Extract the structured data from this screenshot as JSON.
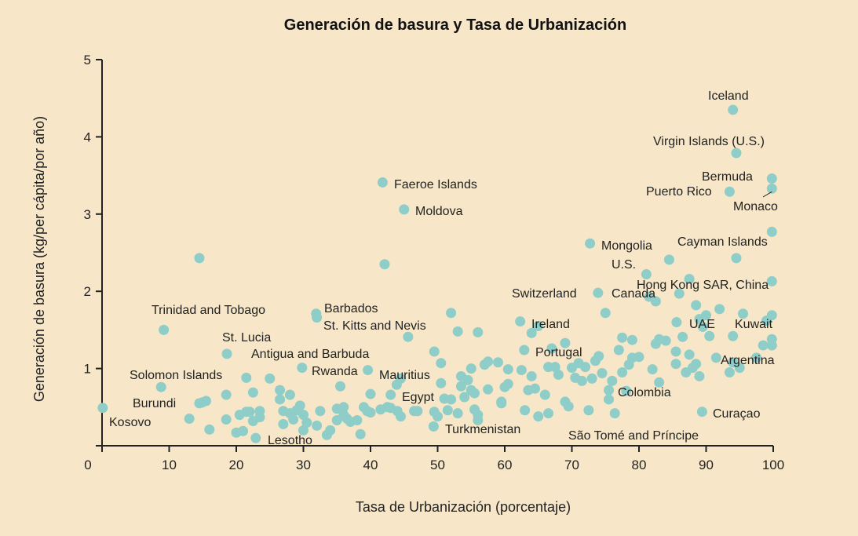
{
  "colors": {
    "background": "#f7e7c8",
    "point": "#8ecdc8",
    "axis": "#222222"
  },
  "chart_data": {
    "type": "scatter",
    "title": "Generación de basura y Tasa de Urbanización",
    "xlabel": "Tasa de Urbanización (porcentaje)",
    "ylabel": "Generación de basura (kg/per cápita/por año)",
    "xlim": [
      0,
      100
    ],
    "ylim": [
      0,
      5
    ],
    "xticks": [
      0,
      10,
      20,
      30,
      40,
      50,
      60,
      70,
      80,
      90,
      100
    ],
    "yticks": [
      1,
      2,
      3,
      4,
      5
    ],
    "grid": false,
    "labeled_points": [
      {
        "name": "Iceland",
        "x": 94.0,
        "y": 4.35
      },
      {
        "name": "Virgin Islands (U.S.)",
        "x": 94.5,
        "y": 3.79
      },
      {
        "name": "Bermuda",
        "x": 99.8,
        "y": 3.46
      },
      {
        "name": "Puerto Rico",
        "x": 93.5,
        "y": 3.29
      },
      {
        "name": "Monaco",
        "x": 99.8,
        "y": 3.33
      },
      {
        "name": "Cayman Islands",
        "x": 99.8,
        "y": 2.77
      },
      {
        "name": "Faeroe Islands",
        "x": 41.8,
        "y": 3.41
      },
      {
        "name": "Moldova",
        "x": 45.0,
        "y": 3.06
      },
      {
        "name": "Mongolia",
        "x": 72.7,
        "y": 2.62
      },
      {
        "name": "U.S.",
        "x": 81.1,
        "y": 2.22
      },
      {
        "name": "Hong Kong SAR, China",
        "x": 99.8,
        "y": 2.13
      },
      {
        "name": "Switzerland",
        "x": 73.9,
        "y": 1.98
      },
      {
        "name": "Canada",
        "x": 81.5,
        "y": 1.93
      },
      {
        "name": "Ireland",
        "x": 62.3,
        "y": 1.61
      },
      {
        "name": "UAE",
        "x": 85.6,
        "y": 1.6
      },
      {
        "name": "Kuwait",
        "x": 99.8,
        "y": 1.69
      },
      {
        "name": "Portugal",
        "x": 62.9,
        "y": 1.24
      },
      {
        "name": "Argentina",
        "x": 91.5,
        "y": 1.14
      },
      {
        "name": "Colombia",
        "x": 78.1,
        "y": 0.71
      },
      {
        "name": "Curaçao",
        "x": 89.4,
        "y": 0.44
      },
      {
        "name": "São Tomé and Príncipe",
        "x": 76.4,
        "y": 0.42
      },
      {
        "name": "Turkmenistan",
        "x": 49.4,
        "y": 0.25
      },
      {
        "name": "Egypt",
        "x": 43.9,
        "y": 0.79
      },
      {
        "name": "Mauritius",
        "x": 39.6,
        "y": 0.98
      },
      {
        "name": "Rwanda",
        "x": 29.8,
        "y": 1.01
      },
      {
        "name": "Antigua and Barbuda",
        "x": 21.5,
        "y": 0.88
      },
      {
        "name": "St. Lucia",
        "x": 18.6,
        "y": 1.19
      },
      {
        "name": "Barbados",
        "x": 31.9,
        "y": 1.71
      },
      {
        "name": "St. Kitts and Nevis",
        "x": 32.0,
        "y": 1.66
      },
      {
        "name": "Trinidad and Tobago",
        "x": 9.2,
        "y": 1.5
      },
      {
        "name": "Solomon Islands",
        "x": 8.8,
        "y": 0.76
      },
      {
        "name": "Burundi",
        "x": 14.9,
        "y": 0.56
      },
      {
        "name": "Kosovo",
        "x": 0.1,
        "y": 0.49
      },
      {
        "name": "Lesotho",
        "x": 22.9,
        "y": 0.1
      }
    ],
    "points": [
      [
        14.5,
        2.43
      ],
      [
        42.1,
        2.35
      ],
      [
        45.6,
        1.41
      ],
      [
        13,
        0.35
      ],
      [
        15.5,
        0.58
      ],
      [
        14.5,
        0.55
      ],
      [
        16,
        0.21
      ],
      [
        18.5,
        0.66
      ],
      [
        18.5,
        0.34
      ],
      [
        20,
        0.17
      ],
      [
        20.5,
        0.4
      ],
      [
        21,
        0.19
      ],
      [
        21.5,
        0.44
      ],
      [
        22,
        0.44
      ],
      [
        22.5,
        0.32
      ],
      [
        22.5,
        0.69
      ],
      [
        23.5,
        0.45
      ],
      [
        23.5,
        0.37
      ],
      [
        25,
        0.87
      ],
      [
        26.5,
        0.72
      ],
      [
        26.5,
        0.6
      ],
      [
        27,
        0.28
      ],
      [
        27,
        0.45
      ],
      [
        28,
        0.42
      ],
      [
        28,
        0.66
      ],
      [
        28.5,
        0.34
      ],
      [
        29,
        0.46
      ],
      [
        29.5,
        0.52
      ],
      [
        30,
        0.4
      ],
      [
        30,
        0.2
      ],
      [
        30.5,
        0.3
      ],
      [
        32,
        0.26
      ],
      [
        32.5,
        0.45
      ],
      [
        33.5,
        0.14
      ],
      [
        34,
        0.2
      ],
      [
        35,
        0.33
      ],
      [
        35,
        0.48
      ],
      [
        35.5,
        0.77
      ],
      [
        36,
        0.5
      ],
      [
        36,
        0.4
      ],
      [
        36.5,
        0.35
      ],
      [
        37,
        0.31
      ],
      [
        38,
        0.33
      ],
      [
        38.5,
        0.15
      ],
      [
        39,
        0.5
      ],
      [
        39.5,
        0.45
      ],
      [
        40,
        0.43
      ],
      [
        40,
        0.67
      ],
      [
        41.5,
        0.47
      ],
      [
        42.5,
        0.5
      ],
      [
        43,
        0.49
      ],
      [
        43,
        0.66
      ],
      [
        44,
        0.45
      ],
      [
        44.5,
        0.38
      ],
      [
        44.5,
        0.87
      ],
      [
        46.5,
        0.45
      ],
      [
        47,
        0.45
      ],
      [
        49.5,
        0.44
      ],
      [
        49.5,
        1.22
      ],
      [
        50,
        0.38
      ],
      [
        50.5,
        1.07
      ],
      [
        50.5,
        0.81
      ],
      [
        51,
        0.61
      ],
      [
        51.5,
        0.46
      ],
      [
        52,
        1.72
      ],
      [
        52,
        0.6
      ],
      [
        53,
        1.48
      ],
      [
        53,
        0.42
      ],
      [
        53.5,
        0.77
      ],
      [
        53.5,
        0.9
      ],
      [
        54,
        0.63
      ],
      [
        54.5,
        0.85
      ],
      [
        55,
        1.0
      ],
      [
        55,
        0.72
      ],
      [
        55.5,
        0.68
      ],
      [
        55.5,
        0.47
      ],
      [
        56,
        1.47
      ],
      [
        56,
        0.4
      ],
      [
        56,
        0.33
      ],
      [
        57,
        1.05
      ],
      [
        57.5,
        1.09
      ],
      [
        57.5,
        0.73
      ],
      [
        59,
        1.08
      ],
      [
        59.5,
        0.57
      ],
      [
        59.5,
        0.55
      ],
      [
        60,
        0.76
      ],
      [
        60.5,
        0.8
      ],
      [
        60.5,
        0.99
      ],
      [
        62.5,
        0.98
      ],
      [
        63,
        0.46
      ],
      [
        63.5,
        0.72
      ],
      [
        64,
        0.9
      ],
      [
        64,
        1.46
      ],
      [
        64.5,
        0.74
      ],
      [
        65,
        0.38
      ],
      [
        65,
        1.55
      ],
      [
        66,
        0.66
      ],
      [
        66.5,
        0.42
      ],
      [
        66.5,
        1.02
      ],
      [
        67,
        1.26
      ],
      [
        67.5,
        1.02
      ],
      [
        68,
        0.92
      ],
      [
        69,
        0.57
      ],
      [
        69,
        1.33
      ],
      [
        69.5,
        0.51
      ],
      [
        70,
        1.01
      ],
      [
        70.5,
        0.88
      ],
      [
        71,
        1.07
      ],
      [
        71.5,
        0.84
      ],
      [
        72,
        1.02
      ],
      [
        72.5,
        0.46
      ],
      [
        73,
        0.87
      ],
      [
        73.5,
        1.1
      ],
      [
        74,
        1.16
      ],
      [
        74.5,
        0.94
      ],
      [
        75,
        1.72
      ],
      [
        75.5,
        0.72
      ],
      [
        75.5,
        0.6
      ],
      [
        76,
        0.84
      ],
      [
        77,
        1.24
      ],
      [
        77.5,
        0.95
      ],
      [
        77.5,
        1.4
      ],
      [
        78.5,
        1.05
      ],
      [
        79,
        1.14
      ],
      [
        79,
        1.37
      ],
      [
        80,
        1.15
      ],
      [
        82,
        0.99
      ],
      [
        82.5,
        1.32
      ],
      [
        82.5,
        1.87
      ],
      [
        83,
        1.38
      ],
      [
        83,
        0.82
      ],
      [
        84,
        1.36
      ],
      [
        84.5,
        2.41
      ],
      [
        85.5,
        1.22
      ],
      [
        85.5,
        1.06
      ],
      [
        86,
        1.97
      ],
      [
        86.5,
        1.41
      ],
      [
        87,
        0.95
      ],
      [
        87.5,
        1.18
      ],
      [
        87.5,
        2.16
      ],
      [
        88,
        1.01
      ],
      [
        88.5,
        1.06
      ],
      [
        88.5,
        1.82
      ],
      [
        89,
        0.9
      ],
      [
        89,
        1.64
      ],
      [
        89.5,
        1.54
      ],
      [
        90,
        1.69
      ],
      [
        90.5,
        1.42
      ],
      [
        92,
        1.77
      ],
      [
        93.5,
        0.95
      ],
      [
        94,
        1.42
      ],
      [
        94.5,
        2.43
      ],
      [
        95,
        1.01
      ],
      [
        95.5,
        1.71
      ],
      [
        97.5,
        1.14
      ],
      [
        98.5,
        1.3
      ],
      [
        99,
        1.62
      ],
      [
        99.8,
        1.38
      ],
      [
        99.8,
        1.3
      ],
      [
        94,
        1.08
      ]
    ]
  }
}
